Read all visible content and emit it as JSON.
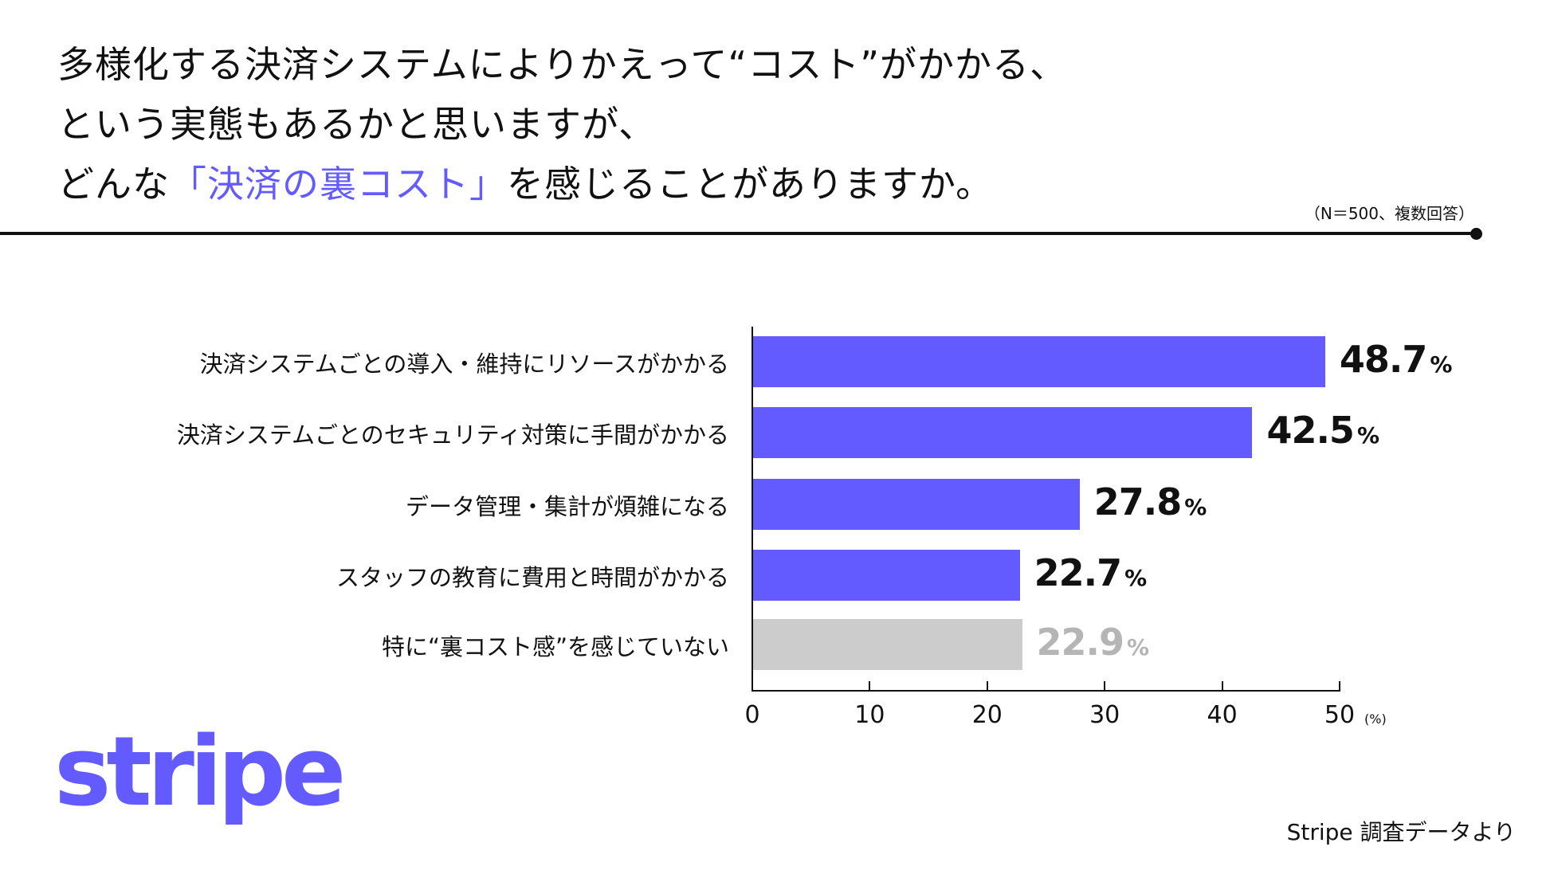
{
  "header": {
    "title_lines": [
      {
        "pre": "多様化する決済システムによりかえって“コスト”がかかる、",
        "hl": "",
        "post": ""
      },
      {
        "pre": "という実態もあるかと思いますが、",
        "hl": "",
        "post": ""
      },
      {
        "pre": "どんな",
        "hl": "「決済の裏コスト」",
        "post": "を感じることがありますか。"
      }
    ],
    "note": "（N＝500、複数回答）"
  },
  "colors": {
    "accent": "#635bff",
    "none_bar": "#cccccc",
    "none_text": "#b5b5b5",
    "text": "#111111"
  },
  "chart_data": {
    "type": "bar",
    "orientation": "horizontal",
    "title": "どんな「決済の裏コスト」を感じることがありますか。",
    "categories": [
      "決済システムごとの導入・維持にリソースがかかる",
      "決済システムごとのセキュリティ対策に手間がかかる",
      "データ管理・集計が煩雑になる",
      "スタッフの教育に費用と時間がかかる",
      "特に“裏コスト感”を感じていない"
    ],
    "values": [
      48.7,
      42.5,
      27.8,
      22.7,
      22.9
    ],
    "value_labels": [
      "48.7",
      "42.5",
      "27.8",
      "22.7",
      "22.9"
    ],
    "value_suffix": "%",
    "xlabel": "(%)",
    "xlim": [
      0,
      50
    ],
    "xticks": [
      "0",
      "10",
      "20",
      "30",
      "40",
      "50"
    ],
    "grid": false,
    "legend": null,
    "note": "N＝500、複数回答"
  },
  "axis": {
    "unit": "(%)"
  },
  "footer": {
    "logo": "stripe",
    "source": "Stripe 調査データより"
  }
}
